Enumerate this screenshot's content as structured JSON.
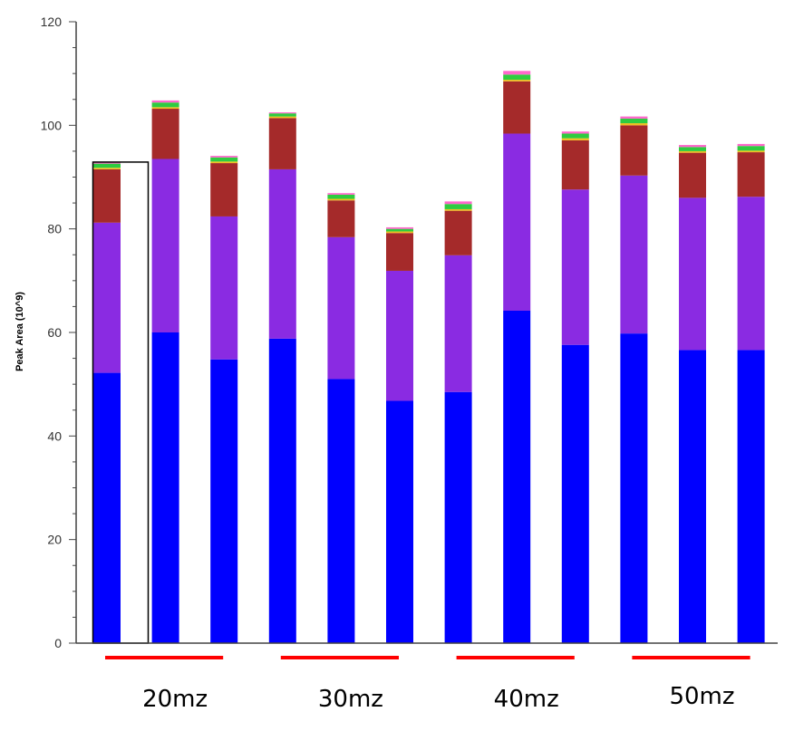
{
  "chart_data": {
    "type": "bar",
    "stacked": true,
    "title": "",
    "xlabel": "",
    "ylabel": "Peak Area (10^9)",
    "ylim": [
      0,
      120
    ],
    "yticks": [
      "0",
      "20",
      "40",
      "60",
      "80",
      "100",
      "120"
    ],
    "grid": false,
    "legend": "none",
    "groups": [
      "20mz",
      "30mz",
      "40mz",
      "50mz"
    ],
    "group_bar_indices": [
      [
        0,
        2
      ],
      [
        3,
        5
      ],
      [
        6,
        8
      ],
      [
        9,
        11
      ]
    ],
    "highlighted_bar": 0,
    "series_colors": [
      "#0000ff",
      "#8a2be2",
      "#a52a2a",
      "#f0c020",
      "#2ecc40",
      "#ff66cc"
    ],
    "series": [
      {
        "values": [
          52.2,
          60.0,
          54.8,
          58.8,
          51.0,
          46.8,
          48.5,
          64.2,
          57.6,
          59.8,
          56.6,
          56.6
        ]
      },
      {
        "values": [
          29.0,
          33.5,
          27.6,
          32.7,
          27.4,
          25.1,
          26.4,
          34.2,
          30.0,
          30.5,
          29.4,
          29.6
        ]
      },
      {
        "values": [
          10.3,
          9.7,
          10.3,
          9.9,
          7.1,
          7.3,
          8.6,
          10.1,
          9.5,
          9.7,
          8.7,
          8.6
        ]
      },
      {
        "values": [
          0.3,
          0.3,
          0.3,
          0.3,
          0.3,
          0.3,
          0.3,
          0.3,
          0.4,
          0.4,
          0.3,
          0.3
        ]
      },
      {
        "values": [
          0.8,
          0.9,
          0.8,
          0.6,
          0.8,
          0.5,
          1.0,
          1.0,
          0.9,
          0.9,
          0.8,
          0.9
        ]
      },
      {
        "values": [
          0.3,
          0.4,
          0.3,
          0.2,
          0.3,
          0.3,
          0.5,
          0.7,
          0.4,
          0.4,
          0.4,
          0.4
        ]
      }
    ]
  }
}
